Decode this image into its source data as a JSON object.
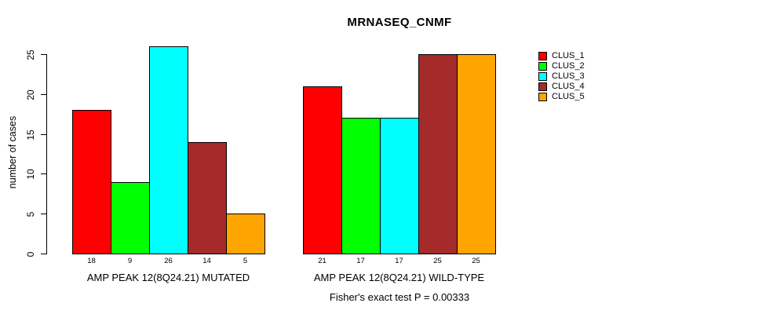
{
  "chart_data": {
    "type": "bar",
    "title": "MRNASEQ_CNMF",
    "ylabel": "number of cases",
    "xlabel": "",
    "ylim": [
      0,
      25
    ],
    "yticks": [
      0,
      5,
      10,
      15,
      20,
      25
    ],
    "grid": false,
    "legend_position": "right",
    "bar_border_color": "#000000",
    "show_bar_values": true,
    "categories": [
      "AMP PEAK 12(8Q24.21) MUTATED",
      "AMP PEAK 12(8Q24.21) WILD-TYPE"
    ],
    "series": [
      {
        "name": "CLUS_1",
        "color": "#FF0000",
        "values": [
          18,
          21
        ]
      },
      {
        "name": "CLUS_2",
        "color": "#00FF00",
        "values": [
          9,
          17
        ]
      },
      {
        "name": "CLUS_3",
        "color": "#00FFFF",
        "values": [
          26,
          17
        ]
      },
      {
        "name": "CLUS_4",
        "color": "#A52A2A",
        "values": [
          14,
          25
        ]
      },
      {
        "name": "CLUS_5",
        "color": "#FFA500",
        "values": [
          5,
          25
        ]
      }
    ],
    "annotation": "Fisher's exact test P = 0.00333"
  }
}
